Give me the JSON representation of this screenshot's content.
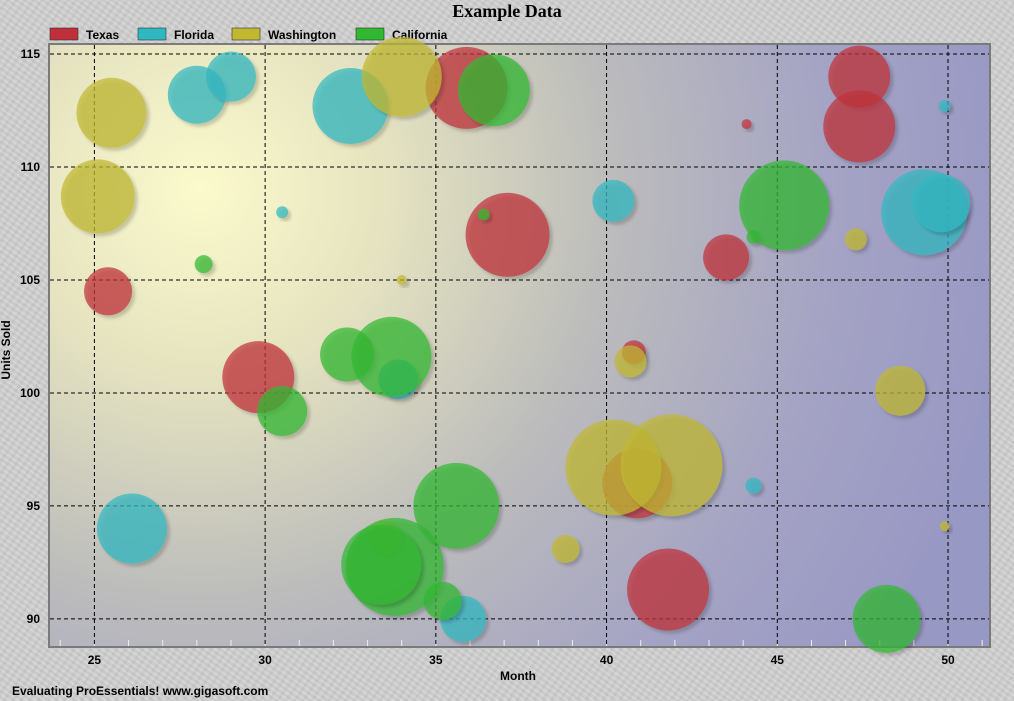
{
  "chart_data": {
    "type": "bubble",
    "title": "Example Data",
    "xlabel": "Month",
    "ylabel": "Units Sold",
    "xlim": [
      23.7,
      51.2
    ],
    "ylim": [
      88.8,
      115.4
    ],
    "x_ticks": [
      25,
      30,
      35,
      40,
      45,
      50
    ],
    "y_ticks": [
      90,
      95,
      100,
      105,
      110,
      115
    ],
    "grid": true,
    "legend_position": "top-left",
    "footer": "Evaluating ProEssentials! www.gigasoft.com",
    "series": [
      {
        "name": "Texas",
        "color": "#c0303a",
        "points": [
          {
            "x": 25.4,
            "y": 104.5,
            "r": 24
          },
          {
            "x": 29.8,
            "y": 100.7,
            "r": 36
          },
          {
            "x": 35.9,
            "y": 113.5,
            "r": 41
          },
          {
            "x": 37.1,
            "y": 107.0,
            "r": 42
          },
          {
            "x": 40.8,
            "y": 101.8,
            "r": 12
          },
          {
            "x": 40.9,
            "y": 96.0,
            "r": 35
          },
          {
            "x": 41.8,
            "y": 91.3,
            "r": 41
          },
          {
            "x": 43.5,
            "y": 106.0,
            "r": 23
          },
          {
            "x": 44.1,
            "y": 111.9,
            "r": 5
          },
          {
            "x": 47.4,
            "y": 114.0,
            "r": 31
          },
          {
            "x": 47.4,
            "y": 111.8,
            "r": 36
          }
        ]
      },
      {
        "name": "Florida",
        "color": "#30b8c0",
        "points": [
          {
            "x": 26.1,
            "y": 94.0,
            "r": 35
          },
          {
            "x": 28.0,
            "y": 113.2,
            "r": 29
          },
          {
            "x": 29.0,
            "y": 114.0,
            "r": 25
          },
          {
            "x": 30.5,
            "y": 108.0,
            "r": 6
          },
          {
            "x": 32.5,
            "y": 112.7,
            "r": 38
          },
          {
            "x": 33.9,
            "y": 100.6,
            "r": 20
          },
          {
            "x": 35.8,
            "y": 90.0,
            "r": 23
          },
          {
            "x": 40.2,
            "y": 108.5,
            "r": 21
          },
          {
            "x": 44.3,
            "y": 95.9,
            "r": 8
          },
          {
            "x": 49.3,
            "y": 108.0,
            "r": 43
          },
          {
            "x": 49.8,
            "y": 108.4,
            "r": 29
          },
          {
            "x": 49.9,
            "y": 112.7,
            "r": 6
          }
        ]
      },
      {
        "name": "Washington",
        "color": "#c0b830",
        "points": [
          {
            "x": 25.5,
            "y": 112.4,
            "r": 35
          },
          {
            "x": 25.1,
            "y": 108.7,
            "r": 37
          },
          {
            "x": 34.0,
            "y": 105.0,
            "r": 5
          },
          {
            "x": 33.5,
            "y": 93.6,
            "r": 17
          },
          {
            "x": 34.0,
            "y": 114.0,
            "r": 40
          },
          {
            "x": 38.8,
            "y": 93.1,
            "r": 14
          },
          {
            "x": 40.2,
            "y": 96.7,
            "r": 48
          },
          {
            "x": 40.7,
            "y": 101.4,
            "r": 16
          },
          {
            "x": 41.9,
            "y": 96.8,
            "r": 51
          },
          {
            "x": 47.3,
            "y": 106.8,
            "r": 11
          },
          {
            "x": 48.6,
            "y": 100.1,
            "r": 25
          },
          {
            "x": 49.9,
            "y": 94.1,
            "r": 5
          }
        ]
      },
      {
        "name": "California",
        "color": "#30b830",
        "points": [
          {
            "x": 28.2,
            "y": 105.7,
            "r": 9
          },
          {
            "x": 30.5,
            "y": 99.2,
            "r": 25
          },
          {
            "x": 32.4,
            "y": 101.7,
            "r": 27
          },
          {
            "x": 33.7,
            "y": 101.6,
            "r": 40
          },
          {
            "x": 33.8,
            "y": 92.3,
            "r": 49
          },
          {
            "x": 33.4,
            "y": 92.4,
            "r": 40
          },
          {
            "x": 35.2,
            "y": 90.8,
            "r": 19
          },
          {
            "x": 35.6,
            "y": 95.0,
            "r": 43
          },
          {
            "x": 36.4,
            "y": 107.9,
            "r": 6
          },
          {
            "x": 36.7,
            "y": 113.4,
            "r": 36
          },
          {
            "x": 44.3,
            "y": 106.9,
            "r": 7
          },
          {
            "x": 45.2,
            "y": 108.3,
            "r": 45
          },
          {
            "x": 48.2,
            "y": 90.0,
            "r": 34
          }
        ]
      }
    ]
  }
}
